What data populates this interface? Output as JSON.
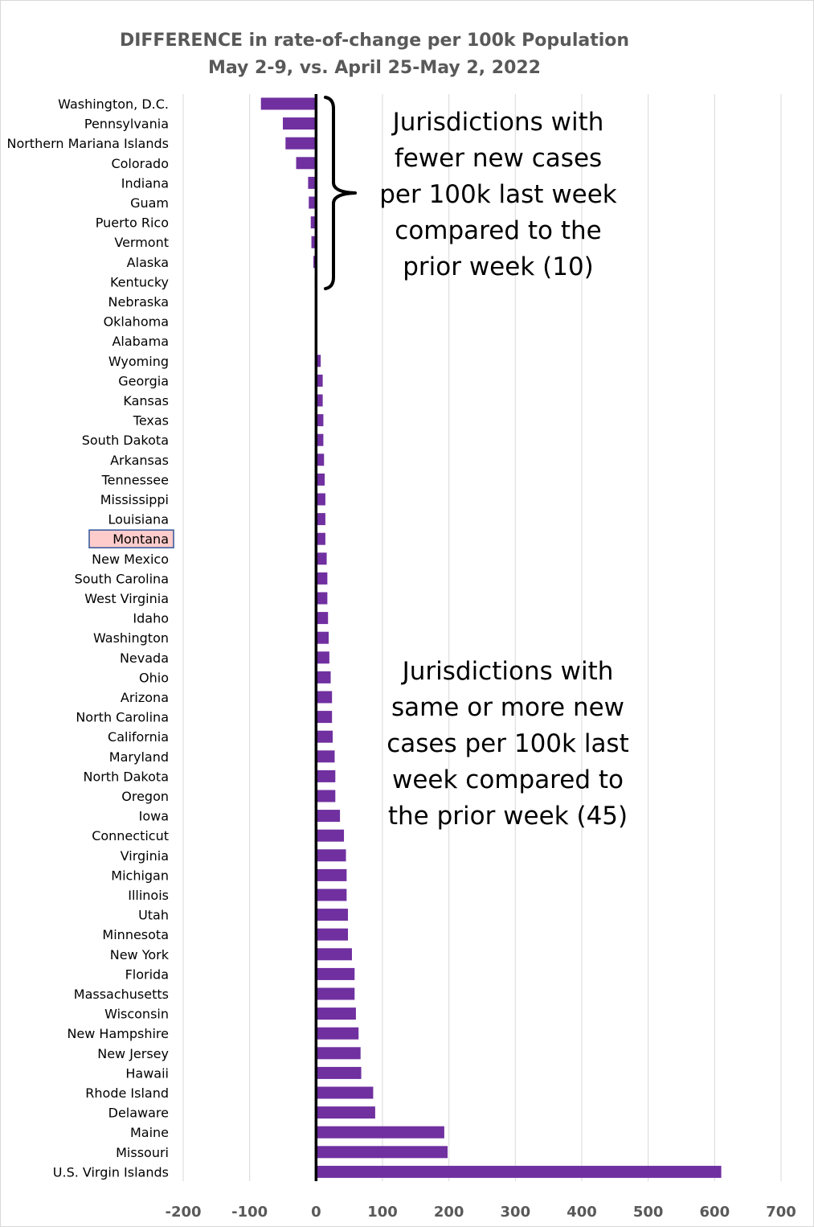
{
  "chart_data": {
    "type": "bar",
    "orientation": "horizontal",
    "title": "DIFFERENCE in rate-of-change per 100k Population",
    "subtitle": "May 2-9, vs. April 25-May 2, 2022",
    "categories": [
      "Washington, D.C.",
      "Pennsylvania",
      "Northern Mariana Islands",
      "Colorado",
      "Indiana",
      "Guam",
      "Puerto Rico",
      "Vermont",
      "Alaska",
      "Kentucky",
      "Nebraska",
      "Oklahoma",
      "Alabama",
      "Wyoming",
      "Georgia",
      "Kansas",
      "Texas",
      "South Dakota",
      "Arkansas",
      "Tennessee",
      "Mississippi",
      "Louisiana",
      "Montana",
      "New Mexico",
      "South Carolina",
      "West Virginia",
      "Idaho",
      "Washington",
      "Nevada",
      "Ohio",
      "Arizona",
      "North Carolina",
      "California",
      "Maryland",
      "North Dakota",
      "Oregon",
      "Iowa",
      "Connecticut",
      "Virginia",
      "Michigan",
      "Illinois",
      "Utah",
      "Minnesota",
      "New York",
      "Florida",
      "Massachusetts",
      "Wisconsin",
      "New Hampshire",
      "New Jersey",
      "Hawaii",
      "Rhode Island",
      "Delaware",
      "Maine",
      "Missouri",
      "U.S. Virgin Islands"
    ],
    "values": [
      -83,
      -50,
      -46,
      -30,
      -12,
      -11,
      -8,
      -7,
      -4,
      -2,
      0,
      0,
      0,
      7,
      10,
      10,
      11,
      11,
      12,
      13,
      14,
      14,
      14,
      16,
      17,
      17,
      18,
      19,
      20,
      22,
      24,
      24,
      25,
      28,
      29,
      29,
      36,
      42,
      45,
      46,
      46,
      48,
      48,
      54,
      58,
      58,
      60,
      64,
      67,
      68,
      86,
      89,
      193,
      198,
      610
    ],
    "highlight_category": "Montana",
    "xlim": [
      -200,
      700
    ],
    "xticks": [
      "-200",
      "-100",
      "0",
      "100",
      "200",
      "300",
      "400",
      "500",
      "600",
      "700"
    ],
    "xlabel": "",
    "ylabel": "",
    "grid": "vertical",
    "legend": "none"
  },
  "colors": {
    "bar": "#7030a0",
    "gridline": "#d9d9d9",
    "zero_line": "#000000",
    "highlight_fill": "#ffcccc",
    "highlight_border": "#2f5597",
    "title": "#595959",
    "tick_label": "#595959"
  },
  "annotations": {
    "fewer": [
      "Jurisdictions with",
      "fewer new cases",
      "per 100k last week",
      "compared to the",
      "prior week (10)"
    ],
    "more": [
      "Jurisdictions with",
      "same or more new",
      "cases per 100k last",
      "week compared to",
      "the prior week (45)"
    ]
  }
}
